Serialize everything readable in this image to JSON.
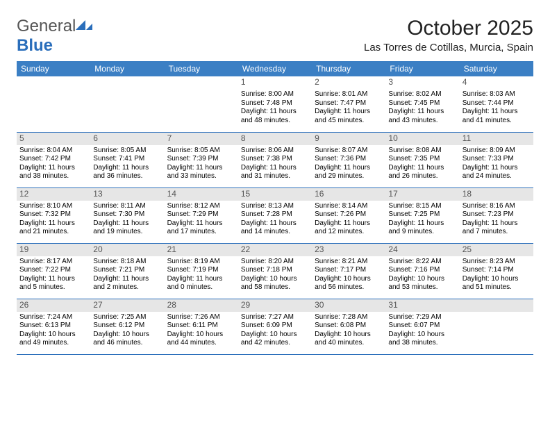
{
  "logo": {
    "text1": "General",
    "text2": "Blue"
  },
  "title": "October 2025",
  "location": "Las Torres de Cotillas, Murcia, Spain",
  "header_color": "#3b7fc4",
  "divider_color": "#2a6ebb",
  "shade_color": "#e6e6e6",
  "day_headers": [
    "Sunday",
    "Monday",
    "Tuesday",
    "Wednesday",
    "Thursday",
    "Friday",
    "Saturday"
  ],
  "weeks": [
    {
      "shaded": false,
      "days": [
        {
          "n": "",
          "lines": []
        },
        {
          "n": "",
          "lines": []
        },
        {
          "n": "",
          "lines": []
        },
        {
          "n": "1",
          "lines": [
            "Sunrise: 8:00 AM",
            "Sunset: 7:48 PM",
            "Daylight: 11 hours",
            "and 48 minutes."
          ]
        },
        {
          "n": "2",
          "lines": [
            "Sunrise: 8:01 AM",
            "Sunset: 7:47 PM",
            "Daylight: 11 hours",
            "and 45 minutes."
          ]
        },
        {
          "n": "3",
          "lines": [
            "Sunrise: 8:02 AM",
            "Sunset: 7:45 PM",
            "Daylight: 11 hours",
            "and 43 minutes."
          ]
        },
        {
          "n": "4",
          "lines": [
            "Sunrise: 8:03 AM",
            "Sunset: 7:44 PM",
            "Daylight: 11 hours",
            "and 41 minutes."
          ]
        }
      ]
    },
    {
      "shaded": true,
      "days": [
        {
          "n": "5",
          "lines": [
            "Sunrise: 8:04 AM",
            "Sunset: 7:42 PM",
            "Daylight: 11 hours",
            "and 38 minutes."
          ]
        },
        {
          "n": "6",
          "lines": [
            "Sunrise: 8:05 AM",
            "Sunset: 7:41 PM",
            "Daylight: 11 hours",
            "and 36 minutes."
          ]
        },
        {
          "n": "7",
          "lines": [
            "Sunrise: 8:05 AM",
            "Sunset: 7:39 PM",
            "Daylight: 11 hours",
            "and 33 minutes."
          ]
        },
        {
          "n": "8",
          "lines": [
            "Sunrise: 8:06 AM",
            "Sunset: 7:38 PM",
            "Daylight: 11 hours",
            "and 31 minutes."
          ]
        },
        {
          "n": "9",
          "lines": [
            "Sunrise: 8:07 AM",
            "Sunset: 7:36 PM",
            "Daylight: 11 hours",
            "and 29 minutes."
          ]
        },
        {
          "n": "10",
          "lines": [
            "Sunrise: 8:08 AM",
            "Sunset: 7:35 PM",
            "Daylight: 11 hours",
            "and 26 minutes."
          ]
        },
        {
          "n": "11",
          "lines": [
            "Sunrise: 8:09 AM",
            "Sunset: 7:33 PM",
            "Daylight: 11 hours",
            "and 24 minutes."
          ]
        }
      ]
    },
    {
      "shaded": true,
      "days": [
        {
          "n": "12",
          "lines": [
            "Sunrise: 8:10 AM",
            "Sunset: 7:32 PM",
            "Daylight: 11 hours",
            "and 21 minutes."
          ]
        },
        {
          "n": "13",
          "lines": [
            "Sunrise: 8:11 AM",
            "Sunset: 7:30 PM",
            "Daylight: 11 hours",
            "and 19 minutes."
          ]
        },
        {
          "n": "14",
          "lines": [
            "Sunrise: 8:12 AM",
            "Sunset: 7:29 PM",
            "Daylight: 11 hours",
            "and 17 minutes."
          ]
        },
        {
          "n": "15",
          "lines": [
            "Sunrise: 8:13 AM",
            "Sunset: 7:28 PM",
            "Daylight: 11 hours",
            "and 14 minutes."
          ]
        },
        {
          "n": "16",
          "lines": [
            "Sunrise: 8:14 AM",
            "Sunset: 7:26 PM",
            "Daylight: 11 hours",
            "and 12 minutes."
          ]
        },
        {
          "n": "17",
          "lines": [
            "Sunrise: 8:15 AM",
            "Sunset: 7:25 PM",
            "Daylight: 11 hours",
            "and 9 minutes."
          ]
        },
        {
          "n": "18",
          "lines": [
            "Sunrise: 8:16 AM",
            "Sunset: 7:23 PM",
            "Daylight: 11 hours",
            "and 7 minutes."
          ]
        }
      ]
    },
    {
      "shaded": true,
      "days": [
        {
          "n": "19",
          "lines": [
            "Sunrise: 8:17 AM",
            "Sunset: 7:22 PM",
            "Daylight: 11 hours",
            "and 5 minutes."
          ]
        },
        {
          "n": "20",
          "lines": [
            "Sunrise: 8:18 AM",
            "Sunset: 7:21 PM",
            "Daylight: 11 hours",
            "and 2 minutes."
          ]
        },
        {
          "n": "21",
          "lines": [
            "Sunrise: 8:19 AM",
            "Sunset: 7:19 PM",
            "Daylight: 11 hours",
            "and 0 minutes."
          ]
        },
        {
          "n": "22",
          "lines": [
            "Sunrise: 8:20 AM",
            "Sunset: 7:18 PM",
            "Daylight: 10 hours",
            "and 58 minutes."
          ]
        },
        {
          "n": "23",
          "lines": [
            "Sunrise: 8:21 AM",
            "Sunset: 7:17 PM",
            "Daylight: 10 hours",
            "and 56 minutes."
          ]
        },
        {
          "n": "24",
          "lines": [
            "Sunrise: 8:22 AM",
            "Sunset: 7:16 PM",
            "Daylight: 10 hours",
            "and 53 minutes."
          ]
        },
        {
          "n": "25",
          "lines": [
            "Sunrise: 8:23 AM",
            "Sunset: 7:14 PM",
            "Daylight: 10 hours",
            "and 51 minutes."
          ]
        }
      ]
    },
    {
      "shaded": true,
      "days": [
        {
          "n": "26",
          "lines": [
            "Sunrise: 7:24 AM",
            "Sunset: 6:13 PM",
            "Daylight: 10 hours",
            "and 49 minutes."
          ]
        },
        {
          "n": "27",
          "lines": [
            "Sunrise: 7:25 AM",
            "Sunset: 6:12 PM",
            "Daylight: 10 hours",
            "and 46 minutes."
          ]
        },
        {
          "n": "28",
          "lines": [
            "Sunrise: 7:26 AM",
            "Sunset: 6:11 PM",
            "Daylight: 10 hours",
            "and 44 minutes."
          ]
        },
        {
          "n": "29",
          "lines": [
            "Sunrise: 7:27 AM",
            "Sunset: 6:09 PM",
            "Daylight: 10 hours",
            "and 42 minutes."
          ]
        },
        {
          "n": "30",
          "lines": [
            "Sunrise: 7:28 AM",
            "Sunset: 6:08 PM",
            "Daylight: 10 hours",
            "and 40 minutes."
          ]
        },
        {
          "n": "31",
          "lines": [
            "Sunrise: 7:29 AM",
            "Sunset: 6:07 PM",
            "Daylight: 10 hours",
            "and 38 minutes."
          ]
        },
        {
          "n": "",
          "lines": []
        }
      ]
    }
  ]
}
